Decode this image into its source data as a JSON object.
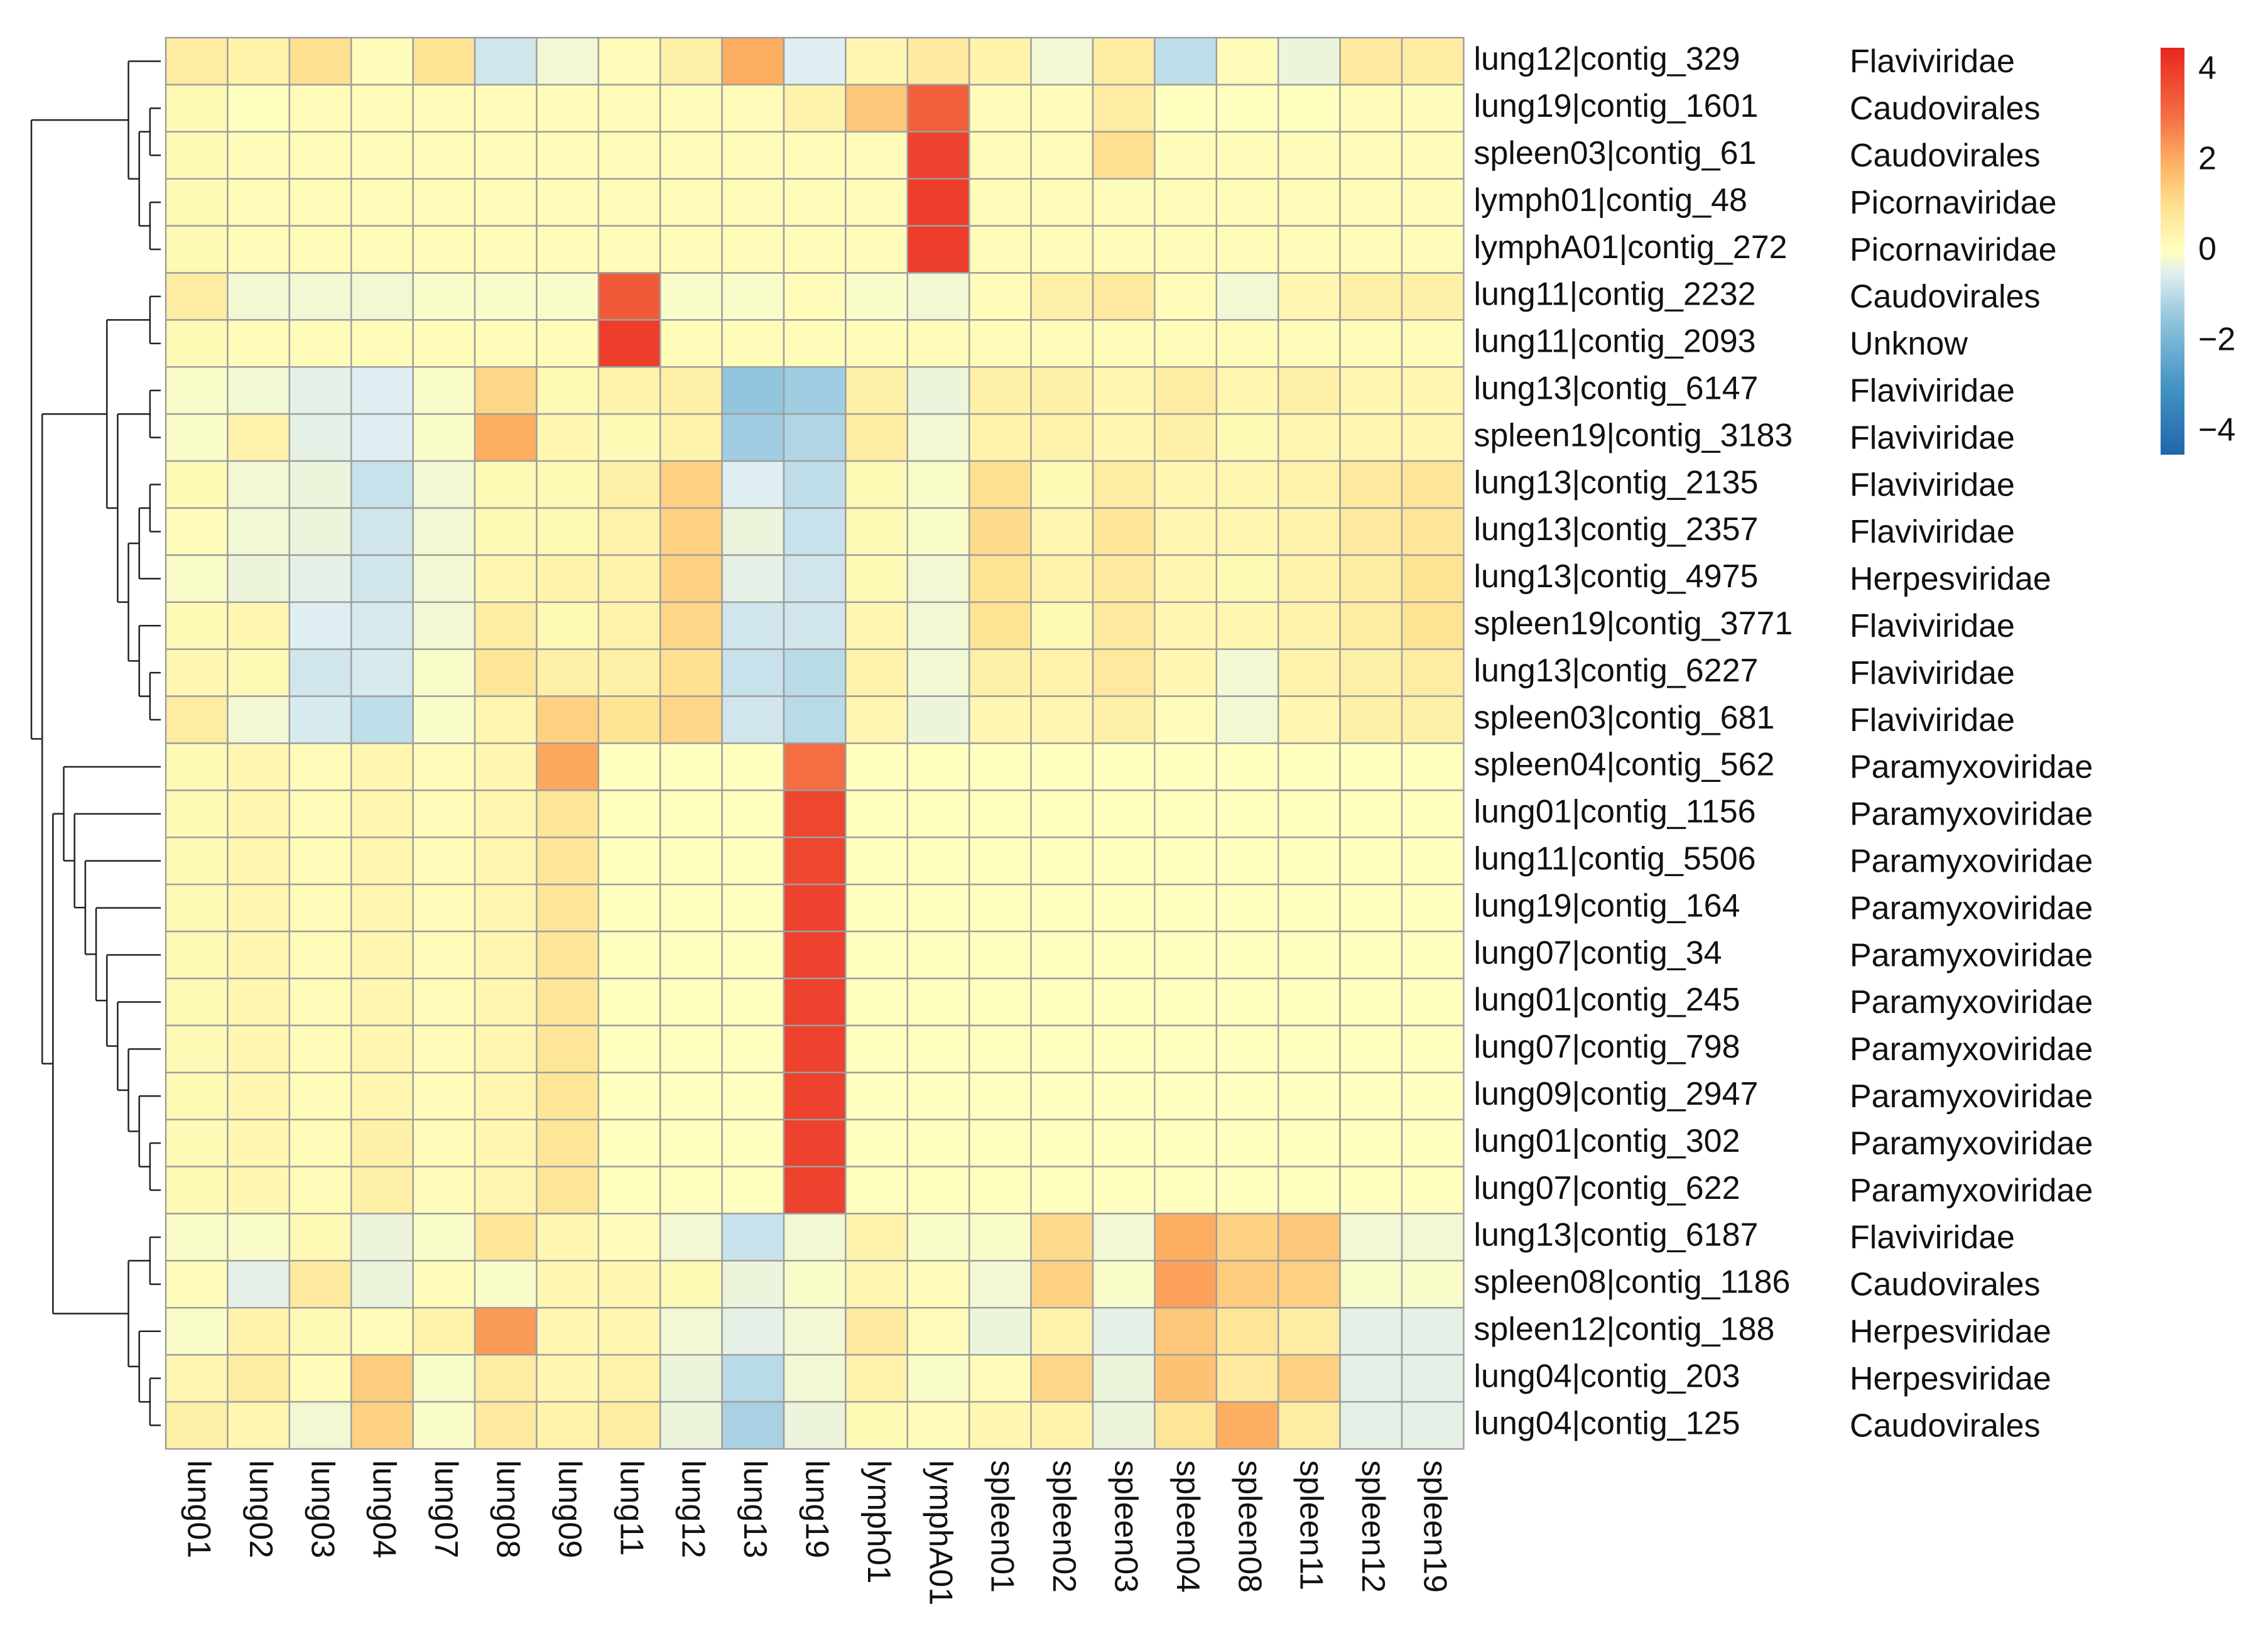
{
  "chart_data": {
    "type": "heatmap",
    "title": "",
    "columns": [
      "lung01",
      "lung02",
      "lung03",
      "lung04",
      "lung07",
      "lung08",
      "lung09",
      "lung11",
      "lung12",
      "lung13",
      "lung19",
      "lymph01",
      "lymphA01",
      "spleen01",
      "spleen02",
      "spleen03",
      "spleen04",
      "spleen08",
      "spleen11",
      "spleen12",
      "spleen19"
    ],
    "rows": [
      "lung12|contig_329",
      "lung19|contig_1601",
      "spleen03|contig_61",
      "lymph01|contig_48",
      "lymphA01|contig_272",
      "lung11|contig_2232",
      "lung11|contig_2093",
      "lung13|contig_6147",
      "spleen19|contig_3183",
      "lung13|contig_2135",
      "lung13|contig_2357",
      "lung13|contig_4975",
      "spleen19|contig_3771",
      "lung13|contig_6227",
      "spleen03|contig_681",
      "spleen04|contig_562",
      "lung01|contig_1156",
      "lung11|contig_5506",
      "lung19|contig_164",
      "lung07|contig_34",
      "lung01|contig_245",
      "lung07|contig_798",
      "lung09|contig_2947",
      "lung01|contig_302",
      "lung07|contig_622",
      "lung13|contig_6187",
      "spleen08|contig_1186",
      "spleen12|contig_188",
      "lung04|contig_203",
      "lung04|contig_125"
    ],
    "families": [
      "Flaviviridae",
      "Caudovirales",
      "Caudovirales",
      "Picornaviridae",
      "Picornaviridae",
      "Caudovirales",
      "Unknow",
      "Flaviviridae",
      "Flaviviridae",
      "Flaviviridae",
      "Flaviviridae",
      "Herpesviridae",
      "Flaviviridae",
      "Flaviviridae",
      "Flaviviridae",
      "Paramyxoviridae",
      "Paramyxoviridae",
      "Paramyxoviridae",
      "Paramyxoviridae",
      "Paramyxoviridae",
      "Paramyxoviridae",
      "Paramyxoviridae",
      "Paramyxoviridae",
      "Paramyxoviridae",
      "Paramyxoviridae",
      "Flaviviridae",
      "Caudovirales",
      "Herpesviridae",
      "Herpesviridae",
      "Caudovirales"
    ],
    "values": [
      [
        0.6,
        0.4,
        1.0,
        0.1,
        0.9,
        -0.7,
        -0.2,
        0.1,
        0.5,
        2.0,
        -0.5,
        0.3,
        0.7,
        0.4,
        -0.2,
        0.6,
        -0.9,
        0.1,
        -0.3,
        0.7,
        0.6
      ],
      [
        0.2,
        0.0,
        0.1,
        0.1,
        0.1,
        0.1,
        0.1,
        0.1,
        0.1,
        0.1,
        0.4,
        1.5,
        3.3,
        0.1,
        0.1,
        0.6,
        0.0,
        0.0,
        0.0,
        0.1,
        0.1
      ],
      [
        0.2,
        0.1,
        0.1,
        0.1,
        0.1,
        0.1,
        0.1,
        0.1,
        0.1,
        0.1,
        0.1,
        0.1,
        3.9,
        0.1,
        0.1,
        1.0,
        0.1,
        0.1,
        0.1,
        0.1,
        0.1
      ],
      [
        0.2,
        0.1,
        0.1,
        0.1,
        0.1,
        0.1,
        0.1,
        0.1,
        0.1,
        0.1,
        0.1,
        0.1,
        4.0,
        0.1,
        0.1,
        0.1,
        0.1,
        0.1,
        0.1,
        0.1,
        0.1
      ],
      [
        0.2,
        0.1,
        0.1,
        0.1,
        0.1,
        0.1,
        0.1,
        0.1,
        0.1,
        0.1,
        0.1,
        0.1,
        4.0,
        0.1,
        0.1,
        0.1,
        0.1,
        0.1,
        0.1,
        0.1,
        0.1
      ],
      [
        0.6,
        -0.2,
        -0.2,
        -0.2,
        -0.1,
        -0.1,
        -0.1,
        3.4,
        -0.1,
        -0.1,
        0.1,
        -0.1,
        -0.2,
        0.1,
        0.5,
        0.7,
        0.1,
        -0.2,
        0.3,
        0.5,
        0.5
      ],
      [
        0.2,
        0.1,
        0.1,
        0.1,
        0.1,
        0.1,
        0.1,
        4.0,
        0.1,
        0.1,
        0.1,
        0.1,
        0.1,
        0.1,
        0.1,
        0.1,
        0.1,
        0.1,
        0.1,
        0.1,
        0.1
      ],
      [
        -0.1,
        -0.2,
        -0.4,
        -0.5,
        -0.1,
        1.2,
        0.2,
        0.4,
        0.5,
        -1.5,
        -1.3,
        0.5,
        -0.3,
        0.5,
        0.5,
        0.3,
        0.6,
        0.3,
        0.5,
        0.3,
        0.3
      ],
      [
        -0.1,
        0.4,
        -0.4,
        -0.5,
        -0.1,
        2.0,
        0.3,
        0.2,
        0.4,
        -1.3,
        -1.1,
        0.6,
        -0.2,
        0.4,
        0.4,
        0.3,
        0.5,
        0.2,
        0.3,
        0.3,
        0.3
      ],
      [
        0.2,
        -0.2,
        -0.3,
        -0.8,
        -0.2,
        0.2,
        0.2,
        0.5,
        1.3,
        -0.5,
        -0.9,
        0.2,
        -0.1,
        1.0,
        0.2,
        0.6,
        0.3,
        0.3,
        0.4,
        0.7,
        0.8
      ],
      [
        0.1,
        -0.2,
        -0.3,
        -0.7,
        -0.2,
        0.2,
        0.2,
        0.4,
        1.3,
        -0.3,
        -0.8,
        0.2,
        -0.1,
        1.1,
        0.3,
        0.8,
        0.3,
        0.3,
        0.4,
        0.7,
        0.8
      ],
      [
        -0.1,
        -0.3,
        -0.4,
        -0.7,
        -0.2,
        0.3,
        0.4,
        0.4,
        1.3,
        -0.4,
        -0.7,
        0.2,
        -0.2,
        0.9,
        0.4,
        0.7,
        0.3,
        0.2,
        0.4,
        0.6,
        0.9
      ],
      [
        0.2,
        0.3,
        -0.5,
        -0.6,
        -0.2,
        0.6,
        0.2,
        0.4,
        1.2,
        -0.7,
        -0.7,
        0.3,
        -0.2,
        0.9,
        0.2,
        0.7,
        0.3,
        0.3,
        0.4,
        0.6,
        0.9
      ],
      [
        0.3,
        0.2,
        -0.7,
        -0.6,
        -0.1,
        0.8,
        0.5,
        0.5,
        1.0,
        -0.8,
        -1.0,
        0.4,
        -0.2,
        0.5,
        0.4,
        0.7,
        0.3,
        -0.2,
        0.4,
        0.5,
        0.6
      ],
      [
        0.6,
        -0.2,
        -0.6,
        -0.9,
        -0.1,
        0.3,
        1.3,
        0.9,
        1.2,
        -0.7,
        -1.0,
        0.3,
        -0.3,
        0.3,
        0.3,
        0.5,
        0.1,
        -0.2,
        0.3,
        0.5,
        0.5
      ],
      [
        0.2,
        0.3,
        0.1,
        0.3,
        0.1,
        0.3,
        2.1,
        0.0,
        0.0,
        0.0,
        3.0,
        0.0,
        0.0,
        0.0,
        0.0,
        0.0,
        0.0,
        0.0,
        0.0,
        0.0,
        0.0
      ],
      [
        0.2,
        0.3,
        0.1,
        0.3,
        0.1,
        0.3,
        0.8,
        0.0,
        0.0,
        0.0,
        3.8,
        0.0,
        0.0,
        0.0,
        0.0,
        0.0,
        0.0,
        0.0,
        0.0,
        0.0,
        0.0
      ],
      [
        0.2,
        0.3,
        0.1,
        0.3,
        0.1,
        0.3,
        0.8,
        0.0,
        0.0,
        0.0,
        3.8,
        0.0,
        0.0,
        0.0,
        0.0,
        0.0,
        0.0,
        0.0,
        0.0,
        0.0,
        0.0
      ],
      [
        0.2,
        0.3,
        0.1,
        0.3,
        0.1,
        0.3,
        0.8,
        0.0,
        0.0,
        0.0,
        3.9,
        0.0,
        0.0,
        0.0,
        0.0,
        0.0,
        0.0,
        0.0,
        0.0,
        0.0,
        0.0
      ],
      [
        0.2,
        0.3,
        0.1,
        0.3,
        0.1,
        0.3,
        0.8,
        0.0,
        0.0,
        0.0,
        3.9,
        0.0,
        0.0,
        0.0,
        0.0,
        0.0,
        0.0,
        0.0,
        0.0,
        0.0,
        0.0
      ],
      [
        0.2,
        0.3,
        0.1,
        0.3,
        0.1,
        0.3,
        0.8,
        0.0,
        0.0,
        0.0,
        3.9,
        0.0,
        0.0,
        0.0,
        0.0,
        0.0,
        0.0,
        0.0,
        0.0,
        0.0,
        0.0
      ],
      [
        0.2,
        0.3,
        0.1,
        0.3,
        0.1,
        0.3,
        0.8,
        0.0,
        0.0,
        0.0,
        3.9,
        0.0,
        0.0,
        0.0,
        0.0,
        0.0,
        0.0,
        0.0,
        0.0,
        0.0,
        0.0
      ],
      [
        0.2,
        0.3,
        0.1,
        0.3,
        0.1,
        0.3,
        0.8,
        0.0,
        0.0,
        0.0,
        3.9,
        0.0,
        0.0,
        0.0,
        0.0,
        0.0,
        0.0,
        0.0,
        0.0,
        0.0,
        0.0
      ],
      [
        0.2,
        0.3,
        0.1,
        0.5,
        0.1,
        0.3,
        0.8,
        0.0,
        0.0,
        0.0,
        3.9,
        0.0,
        0.0,
        0.0,
        0.0,
        0.0,
        0.0,
        0.0,
        0.0,
        0.0,
        0.0
      ],
      [
        0.2,
        0.3,
        0.1,
        0.5,
        0.1,
        0.3,
        0.8,
        0.0,
        0.0,
        0.0,
        3.9,
        0.0,
        0.0,
        0.0,
        0.0,
        0.0,
        0.0,
        0.0,
        0.0,
        0.0,
        0.0
      ],
      [
        -0.1,
        -0.1,
        0.2,
        -0.3,
        -0.1,
        0.8,
        0.3,
        0.1,
        -0.2,
        -0.8,
        -0.2,
        0.4,
        -0.1,
        -0.1,
        1.1,
        -0.2,
        2.0,
        1.3,
        1.5,
        -0.2,
        -0.2
      ],
      [
        0.1,
        -0.4,
        0.7,
        -0.3,
        0.1,
        -0.1,
        0.3,
        0.3,
        0.2,
        -0.3,
        -0.1,
        0.3,
        0.1,
        -0.2,
        1.3,
        -0.1,
        2.2,
        1.4,
        1.3,
        -0.1,
        -0.1
      ],
      [
        -0.1,
        0.4,
        0.2,
        0.1,
        0.4,
        2.3,
        0.3,
        0.3,
        -0.2,
        -0.4,
        -0.2,
        0.7,
        0.1,
        -0.3,
        0.4,
        -0.4,
        1.5,
        0.8,
        0.6,
        -0.4,
        -0.4
      ],
      [
        0.3,
        0.6,
        0.1,
        1.4,
        -0.1,
        0.6,
        0.3,
        0.4,
        -0.3,
        -1.0,
        -0.2,
        0.4,
        -0.1,
        0.1,
        1.2,
        -0.3,
        1.6,
        0.7,
        1.3,
        -0.4,
        -0.4
      ],
      [
        0.5,
        0.3,
        -0.2,
        1.3,
        -0.1,
        0.7,
        0.4,
        0.6,
        -0.3,
        -1.2,
        -0.3,
        0.2,
        0.1,
        0.3,
        0.4,
        -0.3,
        0.8,
        2.0,
        0.6,
        -0.4,
        -0.4
      ]
    ],
    "legend": {
      "ticks": [
        4,
        2,
        0,
        -2,
        -4
      ],
      "min": -4.5,
      "max": 4.5,
      "placement": "right"
    },
    "colors": {
      "low": "#2166ac",
      "mid": "#ffffbf",
      "high": "#e8261f",
      "grid": "#9e9e9e"
    },
    "row_dendrogram": "[[0,[[1,2],[3,4]]],[[[5,6],[[7,8],[[[9,10],11],[12,[13,14]]]]],[[15,[16,[17,[18,[19,[20,[21,[22,[23,24]]]]]]]]],[[25,26],[27,[28,29]]]]]]"
  }
}
